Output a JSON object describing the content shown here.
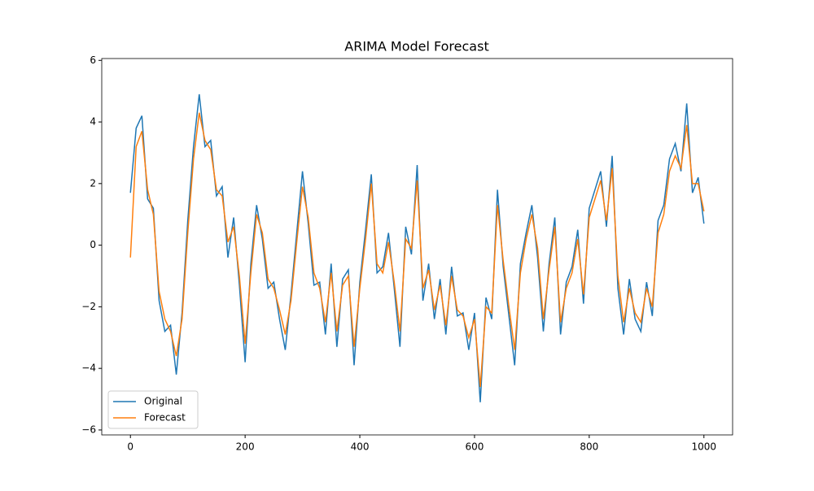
{
  "chart_data": {
    "type": "line",
    "title": "ARIMA Model Forecast",
    "x": [
      0,
      10,
      20,
      30,
      40,
      50,
      60,
      70,
      80,
      90,
      100,
      110,
      120,
      130,
      140,
      150,
      160,
      170,
      180,
      190,
      200,
      210,
      220,
      230,
      240,
      250,
      260,
      270,
      280,
      290,
      300,
      310,
      320,
      330,
      340,
      350,
      360,
      370,
      380,
      390,
      400,
      410,
      420,
      430,
      440,
      450,
      460,
      470,
      480,
      490,
      500,
      510,
      520,
      530,
      540,
      550,
      560,
      570,
      580,
      590,
      600,
      610,
      620,
      630,
      640,
      650,
      660,
      670,
      680,
      690,
      700,
      710,
      720,
      730,
      740,
      750,
      760,
      770,
      780,
      790,
      800,
      810,
      820,
      830,
      840,
      850,
      860,
      870,
      880,
      890,
      900,
      910,
      920,
      930,
      940,
      950,
      960,
      970,
      980,
      990,
      1000
    ],
    "series": [
      {
        "name": "Original",
        "color": "#1f77b4",
        "values": [
          1.7,
          3.8,
          4.2,
          1.5,
          1.2,
          -1.8,
          -2.8,
          -2.6,
          -4.2,
          -2.2,
          0.8,
          3.2,
          4.9,
          3.2,
          3.4,
          1.6,
          1.9,
          -0.4,
          0.9,
          -1.3,
          -3.8,
          -0.6,
          1.3,
          0.2,
          -1.4,
          -1.2,
          -2.4,
          -3.4,
          -1.6,
          0.4,
          2.4,
          0.7,
          -1.3,
          -1.2,
          -2.9,
          -0.6,
          -3.3,
          -1.1,
          -0.8,
          -3.9,
          -1.2,
          0.5,
          2.3,
          -0.9,
          -0.7,
          0.4,
          -1.4,
          -3.3,
          0.6,
          -0.3,
          2.6,
          -1.8,
          -0.6,
          -2.4,
          -1.1,
          -2.9,
          -0.7,
          -2.3,
          -2.2,
          -3.4,
          -2.2,
          -5.1,
          -1.7,
          -2.4,
          1.8,
          -0.7,
          -2.3,
          -3.9,
          -0.6,
          0.4,
          1.3,
          -0.4,
          -2.8,
          -0.6,
          0.9,
          -2.9,
          -1.2,
          -0.7,
          0.5,
          -1.9,
          1.2,
          1.8,
          2.4,
          0.6,
          2.9,
          -1.4,
          -2.9,
          -1.1,
          -2.4,
          -2.8,
          -1.2,
          -2.3,
          0.8,
          1.3,
          2.8,
          3.3,
          2.4,
          4.6,
          1.7,
          2.2,
          0.7
        ]
      },
      {
        "name": "Forecast",
        "color": "#ff7f0e",
        "values": [
          -0.4,
          3.2,
          3.7,
          1.8,
          1.0,
          -1.5,
          -2.4,
          -2.8,
          -3.6,
          -2.4,
          0.4,
          2.8,
          4.3,
          3.4,
          3.1,
          1.8,
          1.6,
          0.1,
          0.6,
          -1.0,
          -3.2,
          -0.9,
          1.0,
          0.4,
          -1.1,
          -1.4,
          -2.1,
          -2.9,
          -1.8,
          0.1,
          1.9,
          0.9,
          -0.9,
          -1.4,
          -2.5,
          -0.9,
          -2.8,
          -1.3,
          -1.0,
          -3.3,
          -1.4,
          0.2,
          2.0,
          -0.6,
          -0.9,
          0.1,
          -1.2,
          -2.8,
          0.2,
          -0.1,
          2.1,
          -1.4,
          -0.8,
          -2.1,
          -1.3,
          -2.6,
          -1.0,
          -2.1,
          -2.3,
          -3.0,
          -2.4,
          -4.6,
          -2.0,
          -2.2,
          1.3,
          -0.5,
          -2.0,
          -3.4,
          -0.9,
          0.2,
          1.0,
          -0.1,
          -2.4,
          -0.8,
          0.6,
          -2.5,
          -1.4,
          -0.9,
          0.2,
          -1.6,
          0.9,
          1.5,
          2.1,
          0.8,
          2.5,
          -1.0,
          -2.5,
          -1.4,
          -2.2,
          -2.5,
          -1.4,
          -2.0,
          0.4,
          1.0,
          2.4,
          2.9,
          2.5,
          3.9,
          2.0,
          2.0,
          1.1
        ]
      }
    ],
    "xlim": [
      -50,
      1050
    ],
    "ylim": [
      -6.16,
      6.06
    ],
    "xticks": [
      0,
      200,
      400,
      600,
      800,
      1000
    ],
    "yticks": [
      {
        "value": -6,
        "label": "−6"
      },
      {
        "value": -4,
        "label": "−4"
      },
      {
        "value": -2,
        "label": "−2"
      },
      0,
      2,
      4,
      6
    ],
    "legend": "lower left"
  }
}
